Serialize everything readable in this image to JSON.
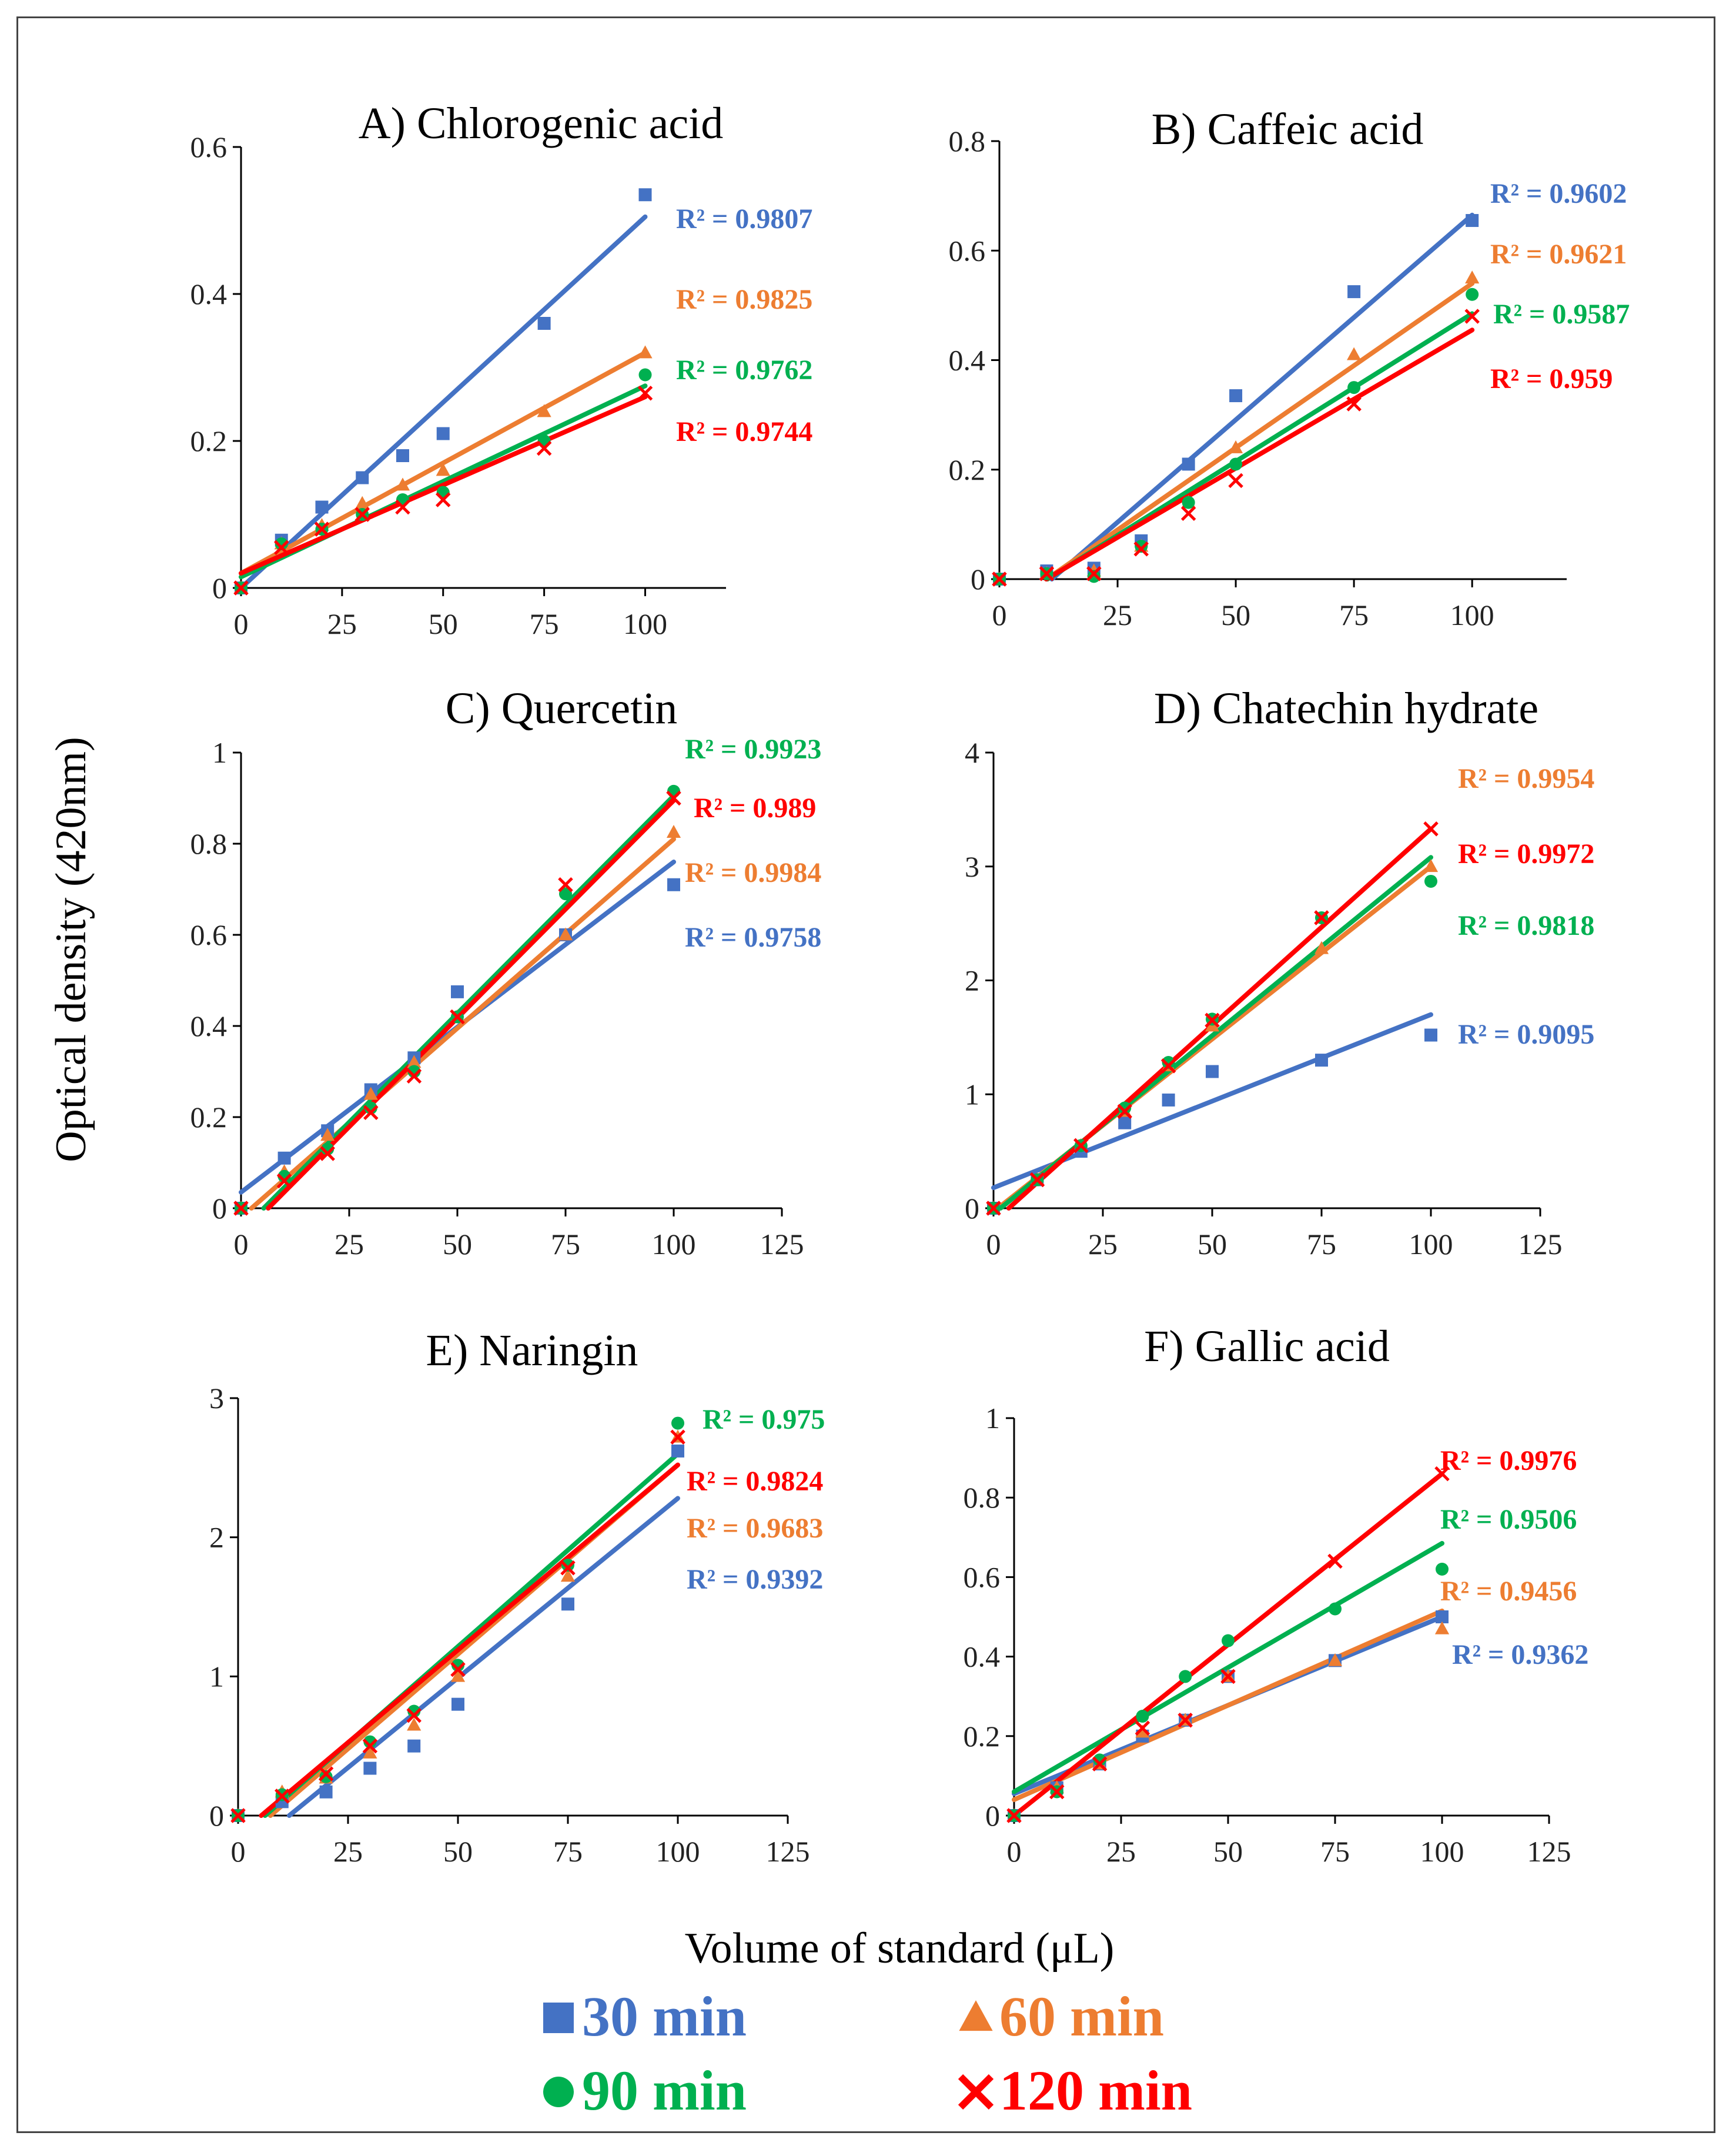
{
  "figure": {
    "ylabel": "Optical density (420nm)",
    "xlabel": "Volume of standard (μL)"
  },
  "colors": {
    "30": "#4472C4",
    "60": "#ED7D31",
    "90": "#00B050",
    "120": "#FF0000"
  },
  "legend": [
    {
      "key": "30",
      "label": "30 min",
      "marker": "square"
    },
    {
      "key": "60",
      "label": "60 min",
      "marker": "triangle"
    },
    {
      "key": "90",
      "label": "90  min",
      "marker": "circle"
    },
    {
      "key": "120",
      "label": "120 min",
      "marker": "x"
    }
  ],
  "chart_data": [
    {
      "id": "A",
      "type": "scatter",
      "title": "A) Chlorogenic acid",
      "xlabel": "Volume of standard (μL)",
      "ylabel": "Optical density (420nm)",
      "x": [
        0,
        10,
        20,
        30,
        40,
        50,
        75,
        100
      ],
      "xlim": [
        0,
        120
      ],
      "xticks": [
        0,
        25,
        50,
        75,
        100
      ],
      "ylim": [
        0,
        0.6
      ],
      "yticks": [
        0,
        0.2,
        0.4,
        0.6
      ],
      "ytick_labels": [
        "0",
        "0.2",
        "0.4",
        "0.6"
      ],
      "series": [
        {
          "key": "30",
          "name": "30 min",
          "values": [
            0,
            0.065,
            0.11,
            0.15,
            0.18,
            0.21,
            0.36,
            0.535
          ],
          "trend": [
            0,
            0.505
          ],
          "r2": "R² = 0.9807"
        },
        {
          "key": "60",
          "name": "60 min",
          "values": [
            0,
            0.06,
            0.085,
            0.115,
            0.14,
            0.16,
            0.24,
            0.32
          ],
          "trend": [
            0.02,
            0.32
          ],
          "r2": "R² = 0.9825"
        },
        {
          "key": "90",
          "name": "90 min",
          "values": [
            0,
            0.06,
            0.08,
            0.1,
            0.12,
            0.13,
            0.2,
            0.29
          ],
          "trend": [
            0.015,
            0.275
          ],
          "r2": "R² = 0.9762"
        },
        {
          "key": "120",
          "name": "120 min",
          "values": [
            0,
            0.055,
            0.08,
            0.1,
            0.11,
            0.12,
            0.19,
            0.265
          ],
          "trend": [
            0.02,
            0.26
          ],
          "r2": "R² = 0.9744"
        }
      ]
    },
    {
      "id": "B",
      "type": "scatter",
      "title": "B) Caffeic acid",
      "xlabel": "Volume of standard (μL)",
      "ylabel": "Optical density (420nm)",
      "x": [
        0,
        10,
        20,
        30,
        40,
        50,
        75,
        100
      ],
      "xlim": [
        0,
        120
      ],
      "xticks": [
        0,
        25,
        50,
        75,
        100
      ],
      "ylim": [
        0,
        0.8
      ],
      "yticks": [
        0,
        0.2,
        0.4,
        0.6,
        0.8
      ],
      "ytick_labels": [
        "0",
        "0.2",
        "0.4",
        "0.6",
        "0.8"
      ],
      "series": [
        {
          "key": "30",
          "name": "30 min",
          "values": [
            0,
            0.015,
            0.02,
            0.07,
            0.21,
            0.335,
            0.525,
            0.655
          ],
          "trend": [
            -0.083,
            0.665
          ],
          "r2": "R² = 0.9602"
        },
        {
          "key": "60",
          "name": "60 min",
          "values": [
            0,
            0.01,
            0.015,
            0.06,
            0.14,
            0.24,
            0.41,
            0.55
          ],
          "trend": [
            -0.06,
            0.54
          ],
          "r2": "R² = 0.9621"
        },
        {
          "key": "90",
          "name": "90 min",
          "values": [
            0,
            0.01,
            0.005,
            0.06,
            0.14,
            0.21,
            0.35,
            0.52
          ],
          "trend": [
            -0.055,
            0.485
          ],
          "r2": "R² = 0.9587"
        },
        {
          "key": "120",
          "name": "120 min",
          "values": [
            0,
            0.01,
            0.01,
            0.055,
            0.12,
            0.18,
            0.32,
            0.48
          ],
          "trend": [
            -0.05,
            0.455
          ],
          "r2": "R² = 0.959"
        }
      ]
    },
    {
      "id": "C",
      "type": "scatter",
      "title": "C) Quercetin",
      "xlabel": "Volume of standard (μL)",
      "ylabel": "Optical density (420nm)",
      "x": [
        0,
        10,
        20,
        30,
        40,
        50,
        75,
        100
      ],
      "xlim": [
        0,
        125
      ],
      "xticks": [
        0,
        25,
        50,
        75,
        100,
        125
      ],
      "ylim": [
        0,
        1
      ],
      "yticks": [
        0,
        0.2,
        0.4,
        0.6,
        0.8,
        1
      ],
      "ytick_labels": [
        "0",
        "0.2",
        "0.4",
        "0.6",
        "0.8",
        "1"
      ],
      "series": [
        {
          "key": "30",
          "name": "30 min",
          "values": [
            0,
            0.11,
            0.17,
            0.26,
            0.33,
            0.475,
            0.6,
            0.71
          ],
          "trend": [
            0.035,
            0.76
          ],
          "r2": "R² = 0.9758"
        },
        {
          "key": "60",
          "name": "60 min",
          "values": [
            0,
            0.08,
            0.16,
            0.25,
            0.32,
            0.42,
            0.6,
            0.825
          ],
          "trend": [
            -0.02,
            0.81
          ],
          "r2": "R² = 0.9984"
        },
        {
          "key": "90",
          "name": "90 min",
          "values": [
            0,
            0.07,
            0.13,
            0.22,
            0.3,
            0.42,
            0.69,
            0.915
          ],
          "trend": [
            -0.05,
            0.905
          ],
          "r2": "R² = 0.9923"
        },
        {
          "key": "120",
          "name": "120 min",
          "values": [
            0,
            0.06,
            0.12,
            0.21,
            0.29,
            0.42,
            0.71,
            0.9
          ],
          "trend": [
            -0.06,
            0.895
          ],
          "r2": "R² = 0.989"
        }
      ]
    },
    {
      "id": "D",
      "type": "scatter",
      "title": "D) Chatechin hydrate",
      "xlabel": "Volume of standard (μL)",
      "ylabel": "Optical density (420nm)",
      "x": [
        0,
        10,
        20,
        30,
        40,
        50,
        75,
        100
      ],
      "xlim": [
        0,
        125
      ],
      "xticks": [
        0,
        25,
        50,
        75,
        100,
        125
      ],
      "ylim": [
        0,
        4
      ],
      "yticks": [
        0,
        1,
        2,
        3,
        4
      ],
      "ytick_labels": [
        "0",
        "1",
        "2",
        "3",
        "4"
      ],
      "series": [
        {
          "key": "30",
          "name": "30 min",
          "values": [
            0,
            0.25,
            0.5,
            0.75,
            0.95,
            1.2,
            1.3,
            1.52
          ],
          "trend": [
            0.18,
            1.7
          ],
          "r2": "R² = 0.9095"
        },
        {
          "key": "60",
          "name": "60 min",
          "values": [
            0,
            0.25,
            0.55,
            0.85,
            1.25,
            1.6,
            2.28,
            3.0
          ],
          "trend": [
            -0.03,
            3.0
          ],
          "r2": "R² = 0.9954"
        },
        {
          "key": "90",
          "name": "90 min",
          "values": [
            0,
            0.25,
            0.55,
            0.88,
            1.28,
            1.66,
            2.55,
            2.87
          ],
          "trend": [
            -0.05,
            3.08
          ],
          "r2": "R² = 0.9818"
        },
        {
          "key": "120",
          "name": "120 min",
          "values": [
            0,
            0.25,
            0.55,
            0.85,
            1.25,
            1.65,
            2.55,
            3.33
          ],
          "trend": [
            -0.12,
            3.33
          ],
          "r2": "R² = 0.9972"
        }
      ]
    },
    {
      "id": "E",
      "type": "scatter",
      "title": "E) Naringin",
      "xlabel": "Volume of standard (μL)",
      "ylabel": "Optical density (420nm)",
      "x": [
        0,
        10,
        20,
        30,
        40,
        50,
        75,
        100
      ],
      "xlim": [
        0,
        125
      ],
      "xticks": [
        0,
        25,
        50,
        75,
        100,
        125
      ],
      "ylim": [
        0,
        3
      ],
      "yticks": [
        0,
        1,
        2,
        3
      ],
      "ytick_labels": [
        "0",
        "1",
        "2",
        "3"
      ],
      "series": [
        {
          "key": "30",
          "name": "30 min",
          "values": [
            0,
            0.1,
            0.17,
            0.34,
            0.5,
            0.8,
            1.52,
            2.62
          ],
          "trend": [
            -0.3,
            2.28
          ],
          "r2": "R² = 0.9392"
        },
        {
          "key": "60",
          "name": "60 min",
          "values": [
            0,
            0.17,
            0.27,
            0.45,
            0.65,
            1.0,
            1.72,
            2.72
          ],
          "trend": [
            -0.2,
            2.52
          ],
          "r2": "R² = 0.9683"
        },
        {
          "key": "90",
          "name": "90 min",
          "values": [
            0,
            0.15,
            0.28,
            0.53,
            0.75,
            1.08,
            1.8,
            2.82
          ],
          "trend": [
            -0.17,
            2.6
          ],
          "r2": "R² = 0.975"
        },
        {
          "key": "120",
          "name": "120 min",
          "values": [
            0,
            0.14,
            0.3,
            0.5,
            0.72,
            1.05,
            1.78,
            2.72
          ],
          "trend": [
            -0.14,
            2.52
          ],
          "r2": "R² = 0.9824"
        }
      ]
    },
    {
      "id": "F",
      "type": "scatter",
      "title": "F) Gallic acid",
      "xlabel": "Volume of standard (μL)",
      "ylabel": "Optical density (420nm)",
      "x": [
        0,
        10,
        20,
        30,
        40,
        50,
        75,
        100
      ],
      "xlim": [
        0,
        125
      ],
      "xticks": [
        0,
        25,
        50,
        75,
        100,
        125
      ],
      "ylim": [
        0,
        1
      ],
      "yticks": [
        0,
        0.2,
        0.4,
        0.6,
        0.8,
        1
      ],
      "ytick_labels": [
        "0",
        "0.2",
        "0.4",
        "0.6",
        "0.8",
        "1"
      ],
      "series": [
        {
          "key": "30",
          "name": "30 min",
          "values": [
            0,
            0.07,
            0.13,
            0.2,
            0.24,
            0.35,
            0.39,
            0.5
          ],
          "trend": [
            0.055,
            0.5
          ],
          "r2": "R² = 0.9362"
        },
        {
          "key": "60",
          "name": "60 min",
          "values": [
            0,
            0.07,
            0.13,
            0.21,
            0.24,
            0.35,
            0.39,
            0.47
          ],
          "trend": [
            0.04,
            0.515
          ],
          "r2": "R² = 0.9456"
        },
        {
          "key": "90",
          "name": "90 min",
          "values": [
            0,
            0.06,
            0.14,
            0.25,
            0.35,
            0.44,
            0.52,
            0.62
          ],
          "trend": [
            0.06,
            0.685
          ],
          "r2": "R² = 0.9506"
        },
        {
          "key": "120",
          "name": "120 min",
          "values": [
            0,
            0.06,
            0.13,
            0.22,
            0.24,
            0.35,
            0.64,
            0.86
          ],
          "trend": [
            0.0,
            0.86
          ],
          "r2": "R² = 0.9976"
        }
      ]
    }
  ]
}
